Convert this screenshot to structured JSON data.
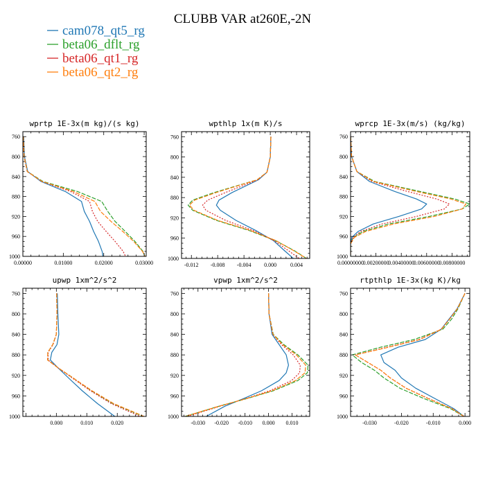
{
  "figure": {
    "title": "CLUBB VAR at260E,-2N",
    "legend": [
      "cam078_qt5_rg",
      "beta06_dflt_rg",
      "beta06_qt1_rg",
      "beta06_qt2_rg"
    ]
  },
  "styles": {
    "colors": [
      "#1f77b4",
      "#2ca02c",
      "#d62728",
      "#ff7f0e"
    ],
    "dash": [
      "",
      "6,2",
      "2,2",
      "6,2"
    ]
  },
  "chart_data": [
    {
      "type": "line",
      "title": "wprtp  1E-3x(m kg)/(s kg)",
      "xlim": [
        0,
        0.0305
      ],
      "ylim": [
        1000,
        750
      ],
      "legend": "top-left",
      "xticks": [
        0,
        0.01,
        0.02,
        0.03
      ],
      "xtick_labels": [
        "0.00000",
        "0.01000",
        "0.02000",
        "0.03000"
      ],
      "yticks": [
        760,
        800,
        840,
        880,
        920,
        960,
        1000
      ],
      "y": [
        760,
        800,
        830,
        850,
        870,
        890,
        910,
        930,
        950,
        970,
        990,
        1000
      ],
      "series": [
        {
          "name": "cam078_qt5_rg",
          "x": [
            0.0002,
            0.0004,
            0.0012,
            0.0045,
            0.0105,
            0.0145,
            0.0152,
            0.0165,
            0.0175,
            0.0187,
            0.0196,
            0.0198
          ]
        },
        {
          "name": "beta06_dflt_rg",
          "x": [
            0.0001,
            0.0003,
            0.0011,
            0.005,
            0.0135,
            0.0195,
            0.021,
            0.0228,
            0.0253,
            0.0277,
            0.0297,
            0.0302
          ]
        },
        {
          "name": "beta06_qt1_rg",
          "x": [
            0.0001,
            0.0003,
            0.0011,
            0.0047,
            0.0118,
            0.0165,
            0.0172,
            0.0185,
            0.0206,
            0.0228,
            0.0248,
            0.0254
          ]
        },
        {
          "name": "beta06_qt2_rg",
          "x": [
            0.0001,
            0.0003,
            0.0011,
            0.0048,
            0.0125,
            0.0178,
            0.0192,
            0.0218,
            0.0247,
            0.0274,
            0.0296,
            0.0302
          ]
        }
      ]
    },
    {
      "type": "line",
      "title": "wpthlp  1x(m K)/s",
      "xlim": [
        -0.0135,
        0.006
      ],
      "ylim": [
        1000,
        750
      ],
      "legend": "top-left",
      "xticks": [
        -0.012,
        -0.008,
        -0.004,
        0,
        0.004
      ],
      "xtick_labels": [
        "-0.012",
        "-0.008",
        "-0.004",
        "0.000",
        "0.004"
      ],
      "yticks": [
        760,
        800,
        840,
        880,
        920,
        960,
        1000
      ],
      "y": [
        760,
        800,
        830,
        845,
        870,
        885,
        895,
        905,
        925,
        945,
        965,
        985,
        1000
      ],
      "series": [
        {
          "name": "cam078_qt5_rg",
          "x": [
            0.0001,
            0.0,
            -0.0005,
            -0.0018,
            -0.0058,
            -0.0078,
            -0.0082,
            -0.0076,
            -0.0052,
            -0.0022,
            0.0005,
            0.0022,
            0.0035
          ]
        },
        {
          "name": "beta06_dflt_rg",
          "x": [
            0.0001,
            0.0,
            -0.0005,
            -0.002,
            -0.0085,
            -0.0118,
            -0.0125,
            -0.0118,
            -0.0082,
            -0.0032,
            0.0008,
            0.0037,
            0.0055
          ]
        },
        {
          "name": "beta06_qt1_rg",
          "x": [
            0.0001,
            0.0,
            -0.0005,
            -0.0019,
            -0.0068,
            -0.0095,
            -0.0103,
            -0.0098,
            -0.0068,
            -0.0026,
            0.0006,
            0.0028,
            0.0044
          ]
        },
        {
          "name": "beta06_qt2_rg",
          "x": [
            0.0001,
            0.0,
            -0.0005,
            -0.002,
            -0.0082,
            -0.0115,
            -0.0123,
            -0.0116,
            -0.008,
            -0.003,
            0.0009,
            0.0036,
            0.0055
          ]
        }
      ]
    },
    {
      "type": "line",
      "title": "wprcp  1E-3x(m/s) (kg/kg)",
      "xlim": [
        0,
        0.0094
      ],
      "ylim": [
        1000,
        750
      ],
      "legend": "top-left",
      "xticks": [
        0,
        0.002,
        0.004,
        0.006,
        0.008
      ],
      "xtick_labels": [
        "0.00000000",
        "0.00200000",
        "0.00400000",
        "0.00600000",
        "0.00800000"
      ],
      "yticks": [
        760,
        800,
        840,
        880,
        920,
        960,
        1000
      ],
      "y": [
        760,
        800,
        830,
        850,
        870,
        885,
        895,
        905,
        920,
        935,
        950,
        962,
        975,
        990,
        1000
      ],
      "series": [
        {
          "name": "cam078_qt5_rg",
          "x": [
            0.0,
            8e-05,
            0.0005,
            0.0015,
            0.0035,
            0.0052,
            0.006,
            0.0056,
            0.0038,
            0.0018,
            0.0006,
            0.0001,
            0.0,
            0.0,
            0.0
          ]
        },
        {
          "name": "beta06_dflt_rg",
          "x": [
            0.0,
            8e-05,
            0.0005,
            0.0019,
            0.0055,
            0.0082,
            0.0094,
            0.0088,
            0.0062,
            0.003,
            0.001,
            0.0002,
            0.0,
            0.0,
            0.0
          ]
        },
        {
          "name": "beta06_qt1_rg",
          "x": [
            0.0,
            8e-05,
            0.0005,
            0.0017,
            0.0045,
            0.0068,
            0.0078,
            0.0074,
            0.0052,
            0.0025,
            0.0008,
            0.0002,
            0.0,
            0.0,
            0.0
          ]
        },
        {
          "name": "beta06_qt2_rg",
          "x": [
            0.0,
            8e-05,
            0.0005,
            0.0018,
            0.0052,
            0.0079,
            0.0091,
            0.0088,
            0.0066,
            0.0034,
            0.0012,
            0.0003,
            0.0,
            0.0,
            0.0
          ]
        }
      ]
    },
    {
      "type": "line",
      "title": "upwp  1xm^2/s^2",
      "xlim": [
        -0.011,
        0.0295
      ],
      "ylim": [
        1000,
        750
      ],
      "legend": "top-left",
      "xticks": [
        0,
        0.01,
        0.02
      ],
      "xtick_labels": [
        "0.000",
        "0.010",
        "0.020"
      ],
      "yticks": [
        760,
        800,
        840,
        880,
        920,
        960,
        1000
      ],
      "y": [
        760,
        800,
        840,
        860,
        875,
        890,
        905,
        925,
        950,
        975,
        1000
      ],
      "series": [
        {
          "name": "cam078_qt5_rg",
          "x": [
            0.0003,
            0.0005,
            0.0008,
            0.0002,
            -0.0015,
            -0.002,
            0.0005,
            0.004,
            0.0085,
            0.0135,
            0.0192
          ]
        },
        {
          "name": "beta06_dflt_rg",
          "x": [
            0.0001,
            0.0002,
            0.0,
            -0.0012,
            -0.0028,
            -0.0028,
            0.0005,
            0.0055,
            0.0115,
            0.0185,
            0.0285
          ]
        },
        {
          "name": "beta06_qt1_rg",
          "x": [
            0.0001,
            0.0002,
            0.0,
            -0.0011,
            -0.0027,
            -0.0027,
            0.0005,
            0.0052,
            0.0112,
            0.018,
            0.0275
          ]
        },
        {
          "name": "beta06_qt2_rg",
          "x": [
            0.0001,
            0.0002,
            0.0,
            -0.0012,
            -0.0028,
            -0.0029,
            0.0005,
            0.0055,
            0.0117,
            0.0188,
            0.0288
          ]
        }
      ]
    },
    {
      "type": "line",
      "title": "vpwp  1xm^2/s^2",
      "xlim": [
        -0.037,
        0.0175
      ],
      "ylim": [
        1000,
        750
      ],
      "legend": "top-left",
      "xticks": [
        -0.03,
        -0.02,
        -0.01,
        0,
        0.01
      ],
      "xtick_labels": [
        "-0.030",
        "-0.020",
        "-0.010",
        "0.000",
        "0.010"
      ],
      "yticks": [
        760,
        800,
        840,
        880,
        920,
        960,
        1000
      ],
      "y": [
        760,
        800,
        840,
        860,
        880,
        900,
        915,
        930,
        950,
        965,
        980,
        1000
      ],
      "series": [
        {
          "name": "cam078_qt5_rg",
          "x": [
            0.0,
            0.0002,
            0.0015,
            0.0045,
            0.0075,
            0.0085,
            0.0075,
            0.0045,
            -0.003,
            -0.0105,
            -0.0185,
            -0.0265
          ]
        },
        {
          "name": "beta06_dflt_rg",
          "x": [
            0.0,
            0.0002,
            0.002,
            0.0065,
            0.0125,
            0.0168,
            0.0165,
            0.0125,
            0.002,
            -0.009,
            -0.021,
            -0.0355
          ]
        },
        {
          "name": "beta06_qt1_rg",
          "x": [
            0.0,
            0.0002,
            0.0018,
            0.0055,
            0.0105,
            0.0135,
            0.0132,
            0.0098,
            0.0005,
            -0.0095,
            -0.0205,
            -0.0345
          ]
        },
        {
          "name": "beta06_qt2_rg",
          "x": [
            0.0,
            0.0002,
            0.0019,
            0.006,
            0.0118,
            0.0158,
            0.0155,
            0.0115,
            0.0015,
            -0.0092,
            -0.021,
            -0.0355
          ]
        }
      ]
    },
    {
      "type": "line",
      "title": "rtpthlp  1E-3x(kg K)/kg",
      "xlim": [
        -0.036,
        0.0015
      ],
      "ylim": [
        1000,
        750
      ],
      "legend": "top-left",
      "xticks": [
        -0.03,
        -0.02,
        -0.01,
        0
      ],
      "xtick_labels": [
        "-0.030",
        "-0.020",
        "-0.010",
        "0.000"
      ],
      "yticks": [
        760,
        800,
        840,
        880,
        920,
        960,
        1000
      ],
      "y": [
        760,
        790,
        810,
        830,
        850,
        865,
        880,
        895,
        910,
        925,
        945,
        965,
        985,
        1000
      ],
      "series": [
        {
          "name": "cam078_qt5_rg",
          "x": [
            0.0,
            -0.0025,
            -0.005,
            -0.0075,
            -0.0125,
            -0.021,
            -0.0265,
            -0.0255,
            -0.022,
            -0.02,
            -0.0155,
            -0.0095,
            -0.0035,
            -0.0003
          ]
        },
        {
          "name": "beta06_dflt_rg",
          "x": [
            0.0,
            -0.0022,
            -0.0042,
            -0.007,
            -0.016,
            -0.0265,
            -0.0355,
            -0.0325,
            -0.0285,
            -0.0255,
            -0.0205,
            -0.013,
            -0.0045,
            -0.0003
          ]
        },
        {
          "name": "beta06_qt1_rg",
          "x": [
            0.0,
            -0.0024,
            -0.0048,
            -0.0075,
            -0.0145,
            -0.0245,
            -0.0345,
            -0.0305,
            -0.0265,
            -0.0235,
            -0.0185,
            -0.0115,
            -0.004,
            -0.0003
          ]
        },
        {
          "name": "beta06_qt2_rg",
          "x": [
            0.0,
            -0.0024,
            -0.0048,
            -0.0074,
            -0.0142,
            -0.024,
            -0.0345,
            -0.0305,
            -0.0265,
            -0.0235,
            -0.0186,
            -0.0117,
            -0.0041,
            -0.0003
          ]
        }
      ]
    }
  ]
}
